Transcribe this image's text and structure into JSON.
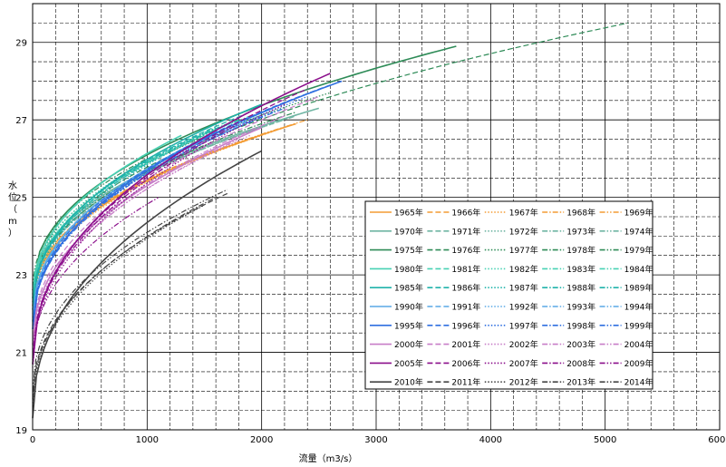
{
  "chart_data": {
    "type": "line",
    "title": "",
    "xlabel": "流量（m3/s）",
    "ylabel": "水位（m）",
    "xlim": [
      0,
      6000
    ],
    "ylim": [
      19,
      30
    ],
    "x_ticks": [
      "0",
      "1000",
      "2000",
      "3000",
      "4000",
      "5000",
      "6000"
    ],
    "y_ticks": [
      "19",
      "21",
      "23",
      "25",
      "27",
      "29"
    ],
    "grid": true,
    "legend_position": "lower-right",
    "series": [
      {
        "name": "1965年",
        "color": "#f39c34",
        "dash": "solid",
        "q_max": 2300,
        "z0": 22.2,
        "z_end": 26.9
      },
      {
        "name": "1966年",
        "color": "#f39c34",
        "dash": "dash",
        "q_max": 2200,
        "z0": 22.3,
        "z_end": 26.8
      },
      {
        "name": "1967年",
        "color": "#f39c34",
        "dash": "dot",
        "q_max": 2100,
        "z0": 22.1,
        "z_end": 26.7
      },
      {
        "name": "1968年",
        "color": "#f39c34",
        "dash": "dashdot",
        "q_max": 2000,
        "z0": 22.2,
        "z_end": 26.6
      },
      {
        "name": "1969年",
        "color": "#f39c34",
        "dash": "dashdotdot",
        "q_max": 2400,
        "z0": 22.3,
        "z_end": 27.0
      },
      {
        "name": "1970年",
        "color": "#6fb5a3",
        "dash": "solid",
        "q_max": 2500,
        "z0": 22.5,
        "z_end": 27.3
      },
      {
        "name": "1971年",
        "color": "#6fb5a3",
        "dash": "dash",
        "q_max": 2200,
        "z0": 22.4,
        "z_end": 27.0
      },
      {
        "name": "1972年",
        "color": "#6fb5a3",
        "dash": "dot",
        "q_max": 2100,
        "z0": 22.5,
        "z_end": 26.9
      },
      {
        "name": "1973年",
        "color": "#6fb5a3",
        "dash": "dashdot",
        "q_max": 2300,
        "z0": 22.3,
        "z_end": 27.1
      },
      {
        "name": "1974年",
        "color": "#6fb5a3",
        "dash": "dashdotdot",
        "q_max": 2000,
        "z0": 22.4,
        "z_end": 26.8
      },
      {
        "name": "1975年",
        "color": "#2e8b57",
        "dash": "solid",
        "q_max": 3700,
        "z0": 22.6,
        "z_end": 28.9
      },
      {
        "name": "1976年",
        "color": "#2e8b57",
        "dash": "dash",
        "q_max": 5200,
        "z0": 22.4,
        "z_end": 29.5
      },
      {
        "name": "1977年",
        "color": "#2e8b57",
        "dash": "dot",
        "q_max": 2600,
        "z0": 22.5,
        "z_end": 27.7
      },
      {
        "name": "1978年",
        "color": "#2e8b57",
        "dash": "dashdot",
        "q_max": 2300,
        "z0": 22.3,
        "z_end": 27.2
      },
      {
        "name": "1979年",
        "color": "#2e8b57",
        "dash": "dashdotdot",
        "q_max": 1000,
        "z0": 22.6,
        "z_end": 26.0
      },
      {
        "name": "1980年",
        "color": "#48d1b4",
        "dash": "solid",
        "q_max": 1300,
        "z0": 22.4,
        "z_end": 26.6
      },
      {
        "name": "1981年",
        "color": "#48d1b4",
        "dash": "dash",
        "q_max": 1800,
        "z0": 22.3,
        "z_end": 27.0
      },
      {
        "name": "1982年",
        "color": "#48d1b4",
        "dash": "dot",
        "q_max": 1700,
        "z0": 22.4,
        "z_end": 26.9
      },
      {
        "name": "1983年",
        "color": "#48d1b4",
        "dash": "dashdot",
        "q_max": 1500,
        "z0": 22.2,
        "z_end": 26.6
      },
      {
        "name": "1984年",
        "color": "#48d1b4",
        "dash": "dashdotdot",
        "q_max": 1900,
        "z0": 22.3,
        "z_end": 27.1
      },
      {
        "name": "1985年",
        "color": "#20b2aa",
        "dash": "solid",
        "q_max": 2000,
        "z0": 22.1,
        "z_end": 27.4
      },
      {
        "name": "1986年",
        "color": "#20b2aa",
        "dash": "dash",
        "q_max": 1900,
        "z0": 22.2,
        "z_end": 27.2
      },
      {
        "name": "1987年",
        "color": "#20b2aa",
        "dash": "dot",
        "q_max": 1800,
        "z0": 22.0,
        "z_end": 27.0
      },
      {
        "name": "1988年",
        "color": "#20b2aa",
        "dash": "dashdot",
        "q_max": 1700,
        "z0": 22.1,
        "z_end": 26.9
      },
      {
        "name": "1989年",
        "color": "#20b2aa",
        "dash": "dashdotdot",
        "q_max": 1600,
        "z0": 22.2,
        "z_end": 26.8
      },
      {
        "name": "1990年",
        "color": "#5aa9e6",
        "dash": "solid",
        "q_max": 2100,
        "z0": 21.8,
        "z_end": 27.3
      },
      {
        "name": "1991年",
        "color": "#5aa9e6",
        "dash": "dash",
        "q_max": 1900,
        "z0": 21.9,
        "z_end": 27.0
      },
      {
        "name": "1992年",
        "color": "#5aa9e6",
        "dash": "dot",
        "q_max": 1800,
        "z0": 21.8,
        "z_end": 26.9
      },
      {
        "name": "1993年",
        "color": "#5aa9e6",
        "dash": "dashdot",
        "q_max": 2000,
        "z0": 21.9,
        "z_end": 27.1
      },
      {
        "name": "1994年",
        "color": "#5aa9e6",
        "dash": "dashdotdot",
        "q_max": 1700,
        "z0": 21.8,
        "z_end": 26.8
      },
      {
        "name": "1995年",
        "color": "#2f6fe0",
        "dash": "solid",
        "q_max": 2700,
        "z0": 21.6,
        "z_end": 28.0
      },
      {
        "name": "1996年",
        "color": "#2f6fe0",
        "dash": "dash",
        "q_max": 2600,
        "z0": 21.7,
        "z_end": 27.9
      },
      {
        "name": "1997年",
        "color": "#2f6fe0",
        "dash": "dot",
        "q_max": 2400,
        "z0": 21.6,
        "z_end": 27.6
      },
      {
        "name": "1998年",
        "color": "#2f6fe0",
        "dash": "dashdot",
        "q_max": 2200,
        "z0": 21.7,
        "z_end": 27.3
      },
      {
        "name": "1999年",
        "color": "#2f6fe0",
        "dash": "dashdotdot",
        "q_max": 2100,
        "z0": 21.6,
        "z_end": 27.2
      },
      {
        "name": "2000年",
        "color": "#c77dc7",
        "dash": "solid",
        "q_max": 2000,
        "z0": 21.2,
        "z_end": 26.8
      },
      {
        "name": "2001年",
        "color": "#c77dc7",
        "dash": "dash",
        "q_max": 2500,
        "z0": 21.3,
        "z_end": 27.6
      },
      {
        "name": "2002年",
        "color": "#c77dc7",
        "dash": "dot",
        "q_max": 1900,
        "z0": 21.1,
        "z_end": 26.6
      },
      {
        "name": "2003年",
        "color": "#c77dc7",
        "dash": "dashdot",
        "q_max": 2200,
        "z0": 21.2,
        "z_end": 27.1
      },
      {
        "name": "2004年",
        "color": "#c77dc7",
        "dash": "dashdotdot",
        "q_max": 1800,
        "z0": 21.0,
        "z_end": 26.5
      },
      {
        "name": "2005年",
        "color": "#8b0f8b",
        "dash": "solid",
        "q_max": 2600,
        "z0": 20.7,
        "z_end": 28.2
      },
      {
        "name": "2006年",
        "color": "#8b0f8b",
        "dash": "dash",
        "q_max": 2400,
        "z0": 20.8,
        "z_end": 27.8
      },
      {
        "name": "2007年",
        "color": "#8b0f8b",
        "dash": "dot",
        "q_max": 2200,
        "z0": 20.6,
        "z_end": 27.4
      },
      {
        "name": "2008年",
        "color": "#8b0f8b",
        "dash": "dashdot",
        "q_max": 1800,
        "z0": 20.7,
        "z_end": 26.9
      },
      {
        "name": "2009年",
        "color": "#8b0f8b",
        "dash": "dashdotdot",
        "q_max": 1100,
        "z0": 20.8,
        "z_end": 25.0
      },
      {
        "name": "2010年",
        "color": "#444444",
        "dash": "solid",
        "q_max": 2000,
        "z0": 19.3,
        "z_end": 26.2
      },
      {
        "name": "2011年",
        "color": "#444444",
        "dash": "dash",
        "q_max": 1700,
        "z0": 19.8,
        "z_end": 25.1
      },
      {
        "name": "2012年",
        "color": "#444444",
        "dash": "dot",
        "q_max": 1500,
        "z0": 19.6,
        "z_end": 24.8
      },
      {
        "name": "2013年",
        "color": "#444444",
        "dash": "dashdot",
        "q_max": 1600,
        "z0": 19.7,
        "z_end": 25.0
      },
      {
        "name": "2014年",
        "color": "#444444",
        "dash": "dashdotdot",
        "q_max": 1700,
        "z0": 20.0,
        "z_end": 25.2
      }
    ]
  }
}
